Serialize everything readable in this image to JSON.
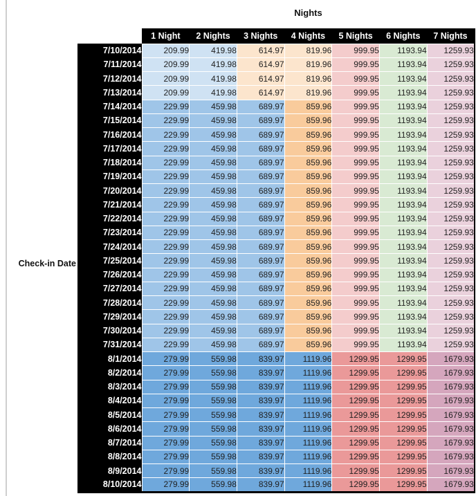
{
  "chart_data": {
    "type": "table",
    "title": "Nights",
    "row_axis_label": "Check-in Date",
    "columns": [
      "1 Night",
      "2 Nights",
      "3 Nights",
      "4 Nights",
      "5 Nights",
      "6 Nights",
      "7 Nights"
    ],
    "palette": {
      "blue3": "#CFE2F3",
      "blue2": "#9FC5E8",
      "blue1": "#6FA8DC",
      "orange3": "#FCE5CD",
      "orange2": "#F9CB9C",
      "red3": "#F4CCCC",
      "red2": "#EA9999",
      "green3": "#D9EAD3",
      "magenta3": "#EAD1DC",
      "magenta2": "#D5A6BD"
    },
    "rows": [
      {
        "date": "7/10/2014",
        "values": [
          209.99,
          419.98,
          614.97,
          819.96,
          999.95,
          1193.94,
          1259.93
        ],
        "colors": [
          "blue3",
          "blue3",
          "orange3",
          "orange3",
          "red3",
          "green3",
          "magenta3"
        ]
      },
      {
        "date": "7/11/2014",
        "values": [
          209.99,
          419.98,
          614.97,
          819.96,
          999.95,
          1193.94,
          1259.93
        ],
        "colors": [
          "blue3",
          "blue3",
          "orange3",
          "orange3",
          "red3",
          "green3",
          "magenta3"
        ]
      },
      {
        "date": "7/12/2014",
        "values": [
          209.99,
          419.98,
          614.97,
          819.96,
          999.95,
          1193.94,
          1259.93
        ],
        "colors": [
          "blue3",
          "blue3",
          "orange3",
          "orange3",
          "red3",
          "green3",
          "magenta3"
        ]
      },
      {
        "date": "7/13/2014",
        "values": [
          209.99,
          419.98,
          614.97,
          819.96,
          999.95,
          1193.94,
          1259.93
        ],
        "colors": [
          "blue3",
          "blue3",
          "orange3",
          "orange3",
          "red3",
          "green3",
          "magenta3"
        ]
      },
      {
        "date": "7/14/2014",
        "values": [
          229.99,
          459.98,
          689.97,
          859.96,
          999.95,
          1193.94,
          1259.93
        ],
        "colors": [
          "blue2",
          "blue2",
          "blue2",
          "orange2",
          "red3",
          "green3",
          "magenta3"
        ]
      },
      {
        "date": "7/15/2014",
        "values": [
          229.99,
          459.98,
          689.97,
          859.96,
          999.95,
          1193.94,
          1259.93
        ],
        "colors": [
          "blue2",
          "blue2",
          "blue2",
          "orange2",
          "red3",
          "green3",
          "magenta3"
        ]
      },
      {
        "date": "7/16/2014",
        "values": [
          229.99,
          459.98,
          689.97,
          859.96,
          999.95,
          1193.94,
          1259.93
        ],
        "colors": [
          "blue2",
          "blue2",
          "blue2",
          "orange2",
          "red3",
          "green3",
          "magenta3"
        ]
      },
      {
        "date": "7/17/2014",
        "values": [
          229.99,
          459.98,
          689.97,
          859.96,
          999.95,
          1193.94,
          1259.93
        ],
        "colors": [
          "blue2",
          "blue2",
          "blue2",
          "orange2",
          "red3",
          "green3",
          "magenta3"
        ]
      },
      {
        "date": "7/18/2014",
        "values": [
          229.99,
          459.98,
          689.97,
          859.96,
          999.95,
          1193.94,
          1259.93
        ],
        "colors": [
          "blue2",
          "blue2",
          "blue2",
          "orange2",
          "red3",
          "green3",
          "magenta3"
        ]
      },
      {
        "date": "7/19/2014",
        "values": [
          229.99,
          459.98,
          689.97,
          859.96,
          999.95,
          1193.94,
          1259.93
        ],
        "colors": [
          "blue2",
          "blue2",
          "blue2",
          "orange2",
          "red3",
          "green3",
          "magenta3"
        ]
      },
      {
        "date": "7/20/2014",
        "values": [
          229.99,
          459.98,
          689.97,
          859.96,
          999.95,
          1193.94,
          1259.93
        ],
        "colors": [
          "blue2",
          "blue2",
          "blue2",
          "orange2",
          "red3",
          "green3",
          "magenta3"
        ]
      },
      {
        "date": "7/21/2014",
        "values": [
          229.99,
          459.98,
          689.97,
          859.96,
          999.95,
          1193.94,
          1259.93
        ],
        "colors": [
          "blue2",
          "blue2",
          "blue2",
          "orange2",
          "red3",
          "green3",
          "magenta3"
        ]
      },
      {
        "date": "7/22/2014",
        "values": [
          229.99,
          459.98,
          689.97,
          859.96,
          999.95,
          1193.94,
          1259.93
        ],
        "colors": [
          "blue2",
          "blue2",
          "blue2",
          "orange2",
          "red3",
          "green3",
          "magenta3"
        ]
      },
      {
        "date": "7/23/2014",
        "values": [
          229.99,
          459.98,
          689.97,
          859.96,
          999.95,
          1193.94,
          1259.93
        ],
        "colors": [
          "blue2",
          "blue2",
          "blue2",
          "orange2",
          "red3",
          "green3",
          "magenta3"
        ]
      },
      {
        "date": "7/24/2014",
        "values": [
          229.99,
          459.98,
          689.97,
          859.96,
          999.95,
          1193.94,
          1259.93
        ],
        "colors": [
          "blue2",
          "blue2",
          "blue2",
          "orange2",
          "red3",
          "green3",
          "magenta3"
        ]
      },
      {
        "date": "7/25/2014",
        "values": [
          229.99,
          459.98,
          689.97,
          859.96,
          999.95,
          1193.94,
          1259.93
        ],
        "colors": [
          "blue2",
          "blue2",
          "blue2",
          "orange2",
          "red3",
          "green3",
          "magenta3"
        ]
      },
      {
        "date": "7/26/2014",
        "values": [
          229.99,
          459.98,
          689.97,
          859.96,
          999.95,
          1193.94,
          1259.93
        ],
        "colors": [
          "blue2",
          "blue2",
          "blue2",
          "orange2",
          "red3",
          "green3",
          "magenta3"
        ]
      },
      {
        "date": "7/27/2014",
        "values": [
          229.99,
          459.98,
          689.97,
          859.96,
          999.95,
          1193.94,
          1259.93
        ],
        "colors": [
          "blue2",
          "blue2",
          "blue2",
          "orange2",
          "red3",
          "green3",
          "magenta3"
        ]
      },
      {
        "date": "7/28/2014",
        "values": [
          229.99,
          459.98,
          689.97,
          859.96,
          999.95,
          1193.94,
          1259.93
        ],
        "colors": [
          "blue2",
          "blue2",
          "blue2",
          "orange2",
          "red3",
          "green3",
          "magenta3"
        ]
      },
      {
        "date": "7/29/2014",
        "values": [
          229.99,
          459.98,
          689.97,
          859.96,
          999.95,
          1193.94,
          1259.93
        ],
        "colors": [
          "blue2",
          "blue2",
          "blue2",
          "orange2",
          "red3",
          "green3",
          "magenta3"
        ]
      },
      {
        "date": "7/30/2014",
        "values": [
          229.99,
          459.98,
          689.97,
          859.96,
          999.95,
          1193.94,
          1259.93
        ],
        "colors": [
          "blue2",
          "blue2",
          "blue2",
          "orange2",
          "red3",
          "green3",
          "magenta3"
        ]
      },
      {
        "date": "7/31/2014",
        "values": [
          229.99,
          459.98,
          689.97,
          859.96,
          999.95,
          1193.94,
          1259.93
        ],
        "colors": [
          "blue2",
          "blue2",
          "blue2",
          "orange2",
          "red3",
          "green3",
          "magenta3"
        ]
      },
      {
        "date": "8/1/2014",
        "values": [
          279.99,
          559.98,
          839.97,
          1119.96,
          1299.95,
          1299.95,
          1679.93
        ],
        "colors": [
          "blue1",
          "blue1",
          "blue1",
          "blue1",
          "red2",
          "red2",
          "magenta2"
        ]
      },
      {
        "date": "8/2/2014",
        "values": [
          279.99,
          559.98,
          839.97,
          1119.96,
          1299.95,
          1299.95,
          1679.93
        ],
        "colors": [
          "blue1",
          "blue1",
          "blue1",
          "blue1",
          "red2",
          "red2",
          "magenta2"
        ]
      },
      {
        "date": "8/3/2014",
        "values": [
          279.99,
          559.98,
          839.97,
          1119.96,
          1299.95,
          1299.95,
          1679.93
        ],
        "colors": [
          "blue1",
          "blue1",
          "blue1",
          "blue1",
          "red2",
          "red2",
          "magenta2"
        ]
      },
      {
        "date": "8/4/2014",
        "values": [
          279.99,
          559.98,
          839.97,
          1119.96,
          1299.95,
          1299.95,
          1679.93
        ],
        "colors": [
          "blue1",
          "blue1",
          "blue1",
          "blue1",
          "red2",
          "red2",
          "magenta2"
        ]
      },
      {
        "date": "8/5/2014",
        "values": [
          279.99,
          559.98,
          839.97,
          1119.96,
          1299.95,
          1299.95,
          1679.93
        ],
        "colors": [
          "blue1",
          "blue1",
          "blue1",
          "blue1",
          "red2",
          "red2",
          "magenta2"
        ]
      },
      {
        "date": "8/6/2014",
        "values": [
          279.99,
          559.98,
          839.97,
          1119.96,
          1299.95,
          1299.95,
          1679.93
        ],
        "colors": [
          "blue1",
          "blue1",
          "blue1",
          "blue1",
          "red2",
          "red2",
          "magenta2"
        ]
      },
      {
        "date": "8/7/2014",
        "values": [
          279.99,
          559.98,
          839.97,
          1119.96,
          1299.95,
          1299.95,
          1679.93
        ],
        "colors": [
          "blue1",
          "blue1",
          "blue1",
          "blue1",
          "red2",
          "red2",
          "magenta2"
        ]
      },
      {
        "date": "8/8/2014",
        "values": [
          279.99,
          559.98,
          839.97,
          1119.96,
          1299.95,
          1299.95,
          1679.93
        ],
        "colors": [
          "blue1",
          "blue1",
          "blue1",
          "blue1",
          "red2",
          "red2",
          "magenta2"
        ]
      },
      {
        "date": "8/9/2014",
        "values": [
          279.99,
          559.98,
          839.97,
          1119.96,
          1299.95,
          1299.95,
          1679.93
        ],
        "colors": [
          "blue1",
          "blue1",
          "blue1",
          "blue1",
          "red2",
          "red2",
          "magenta2"
        ]
      },
      {
        "date": "8/10/2014",
        "values": [
          279.99,
          559.98,
          839.97,
          1119.96,
          1299.95,
          1299.95,
          1679.93
        ],
        "colors": [
          "blue1",
          "blue1",
          "blue1",
          "blue1",
          "red2",
          "red2",
          "magenta2"
        ]
      }
    ]
  }
}
